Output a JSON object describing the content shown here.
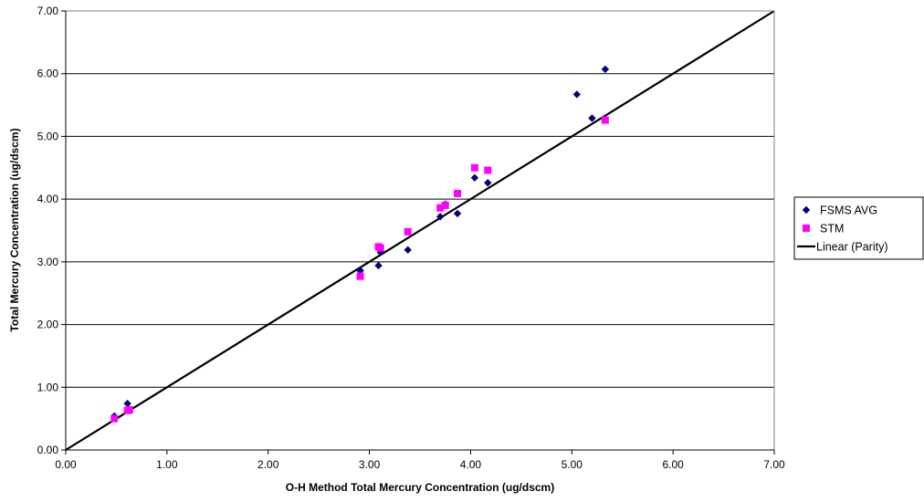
{
  "chart_data": {
    "type": "scatter",
    "xlabel": "O-H Method Total Mercury Concentration (ug/dscm)",
    "ylabel": "Total Mercury Concentration (ug/dscm)",
    "xlim": [
      0,
      7
    ],
    "ylim": [
      0,
      7
    ],
    "x_ticks": [
      "0.00",
      "1.00",
      "2.00",
      "3.00",
      "4.00",
      "5.00",
      "6.00",
      "7.00"
    ],
    "y_ticks": [
      "0.00",
      "1.00",
      "2.00",
      "3.00",
      "4.00",
      "5.00",
      "6.00",
      "7.00"
    ],
    "grid": "horizontal",
    "legend_position": "right",
    "series": [
      {
        "name": "FSMS AVG",
        "marker": "diamond",
        "color": "#000080",
        "points": [
          [
            0.48,
            0.54
          ],
          [
            0.61,
            0.74
          ],
          [
            0.62,
            0.66
          ],
          [
            2.91,
            2.86
          ],
          [
            3.09,
            2.94
          ],
          [
            3.11,
            3.15
          ],
          [
            3.38,
            3.19
          ],
          [
            3.7,
            3.72
          ],
          [
            3.75,
            3.92
          ],
          [
            3.87,
            3.77
          ],
          [
            4.04,
            4.34
          ],
          [
            4.17,
            4.26
          ],
          [
            5.05,
            5.67
          ],
          [
            5.2,
            5.29
          ],
          [
            5.33,
            6.07
          ]
        ]
      },
      {
        "name": "STM",
        "marker": "square",
        "color": "#FF00FF",
        "points": [
          [
            0.48,
            0.5
          ],
          [
            0.61,
            0.63
          ],
          [
            0.63,
            0.64
          ],
          [
            2.91,
            2.77
          ],
          [
            3.09,
            3.24
          ],
          [
            3.11,
            3.22
          ],
          [
            3.38,
            3.48
          ],
          [
            3.7,
            3.86
          ],
          [
            3.75,
            3.9
          ],
          [
            3.87,
            4.09
          ],
          [
            4.04,
            4.5
          ],
          [
            4.17,
            4.46
          ],
          [
            5.33,
            5.26
          ]
        ]
      },
      {
        "name": "Linear (Parity)",
        "type": "line",
        "color": "#000000",
        "points": [
          [
            0,
            0
          ],
          [
            7,
            7
          ]
        ]
      }
    ]
  }
}
